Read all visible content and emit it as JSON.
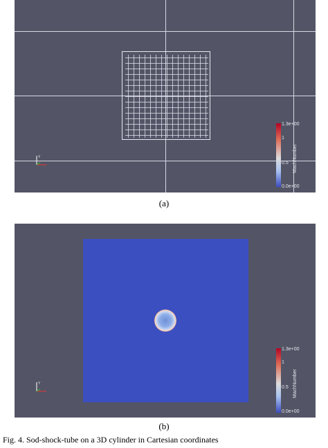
{
  "panel_a": {
    "caption": "(a)",
    "colorbar": {
      "max": "1.3e+00",
      "mid_high": "1",
      "mid_low": "0.5",
      "min": "0.0e+00",
      "title": "MachNumber"
    }
  },
  "panel_b": {
    "caption": "(b)",
    "colorbar": {
      "max": "1.3e+00",
      "mid_high": "1",
      "mid_low": "0.5",
      "min": "0.0e+00",
      "title": "MachNumber"
    }
  },
  "footer_text": "Fig. 4. Sod-shock-tube on a 3D cylinder in Cartesian coordinates",
  "colors": {
    "background": "#535566",
    "field_blue": "#3b4fc1",
    "ring_red": "#c83c2b"
  }
}
